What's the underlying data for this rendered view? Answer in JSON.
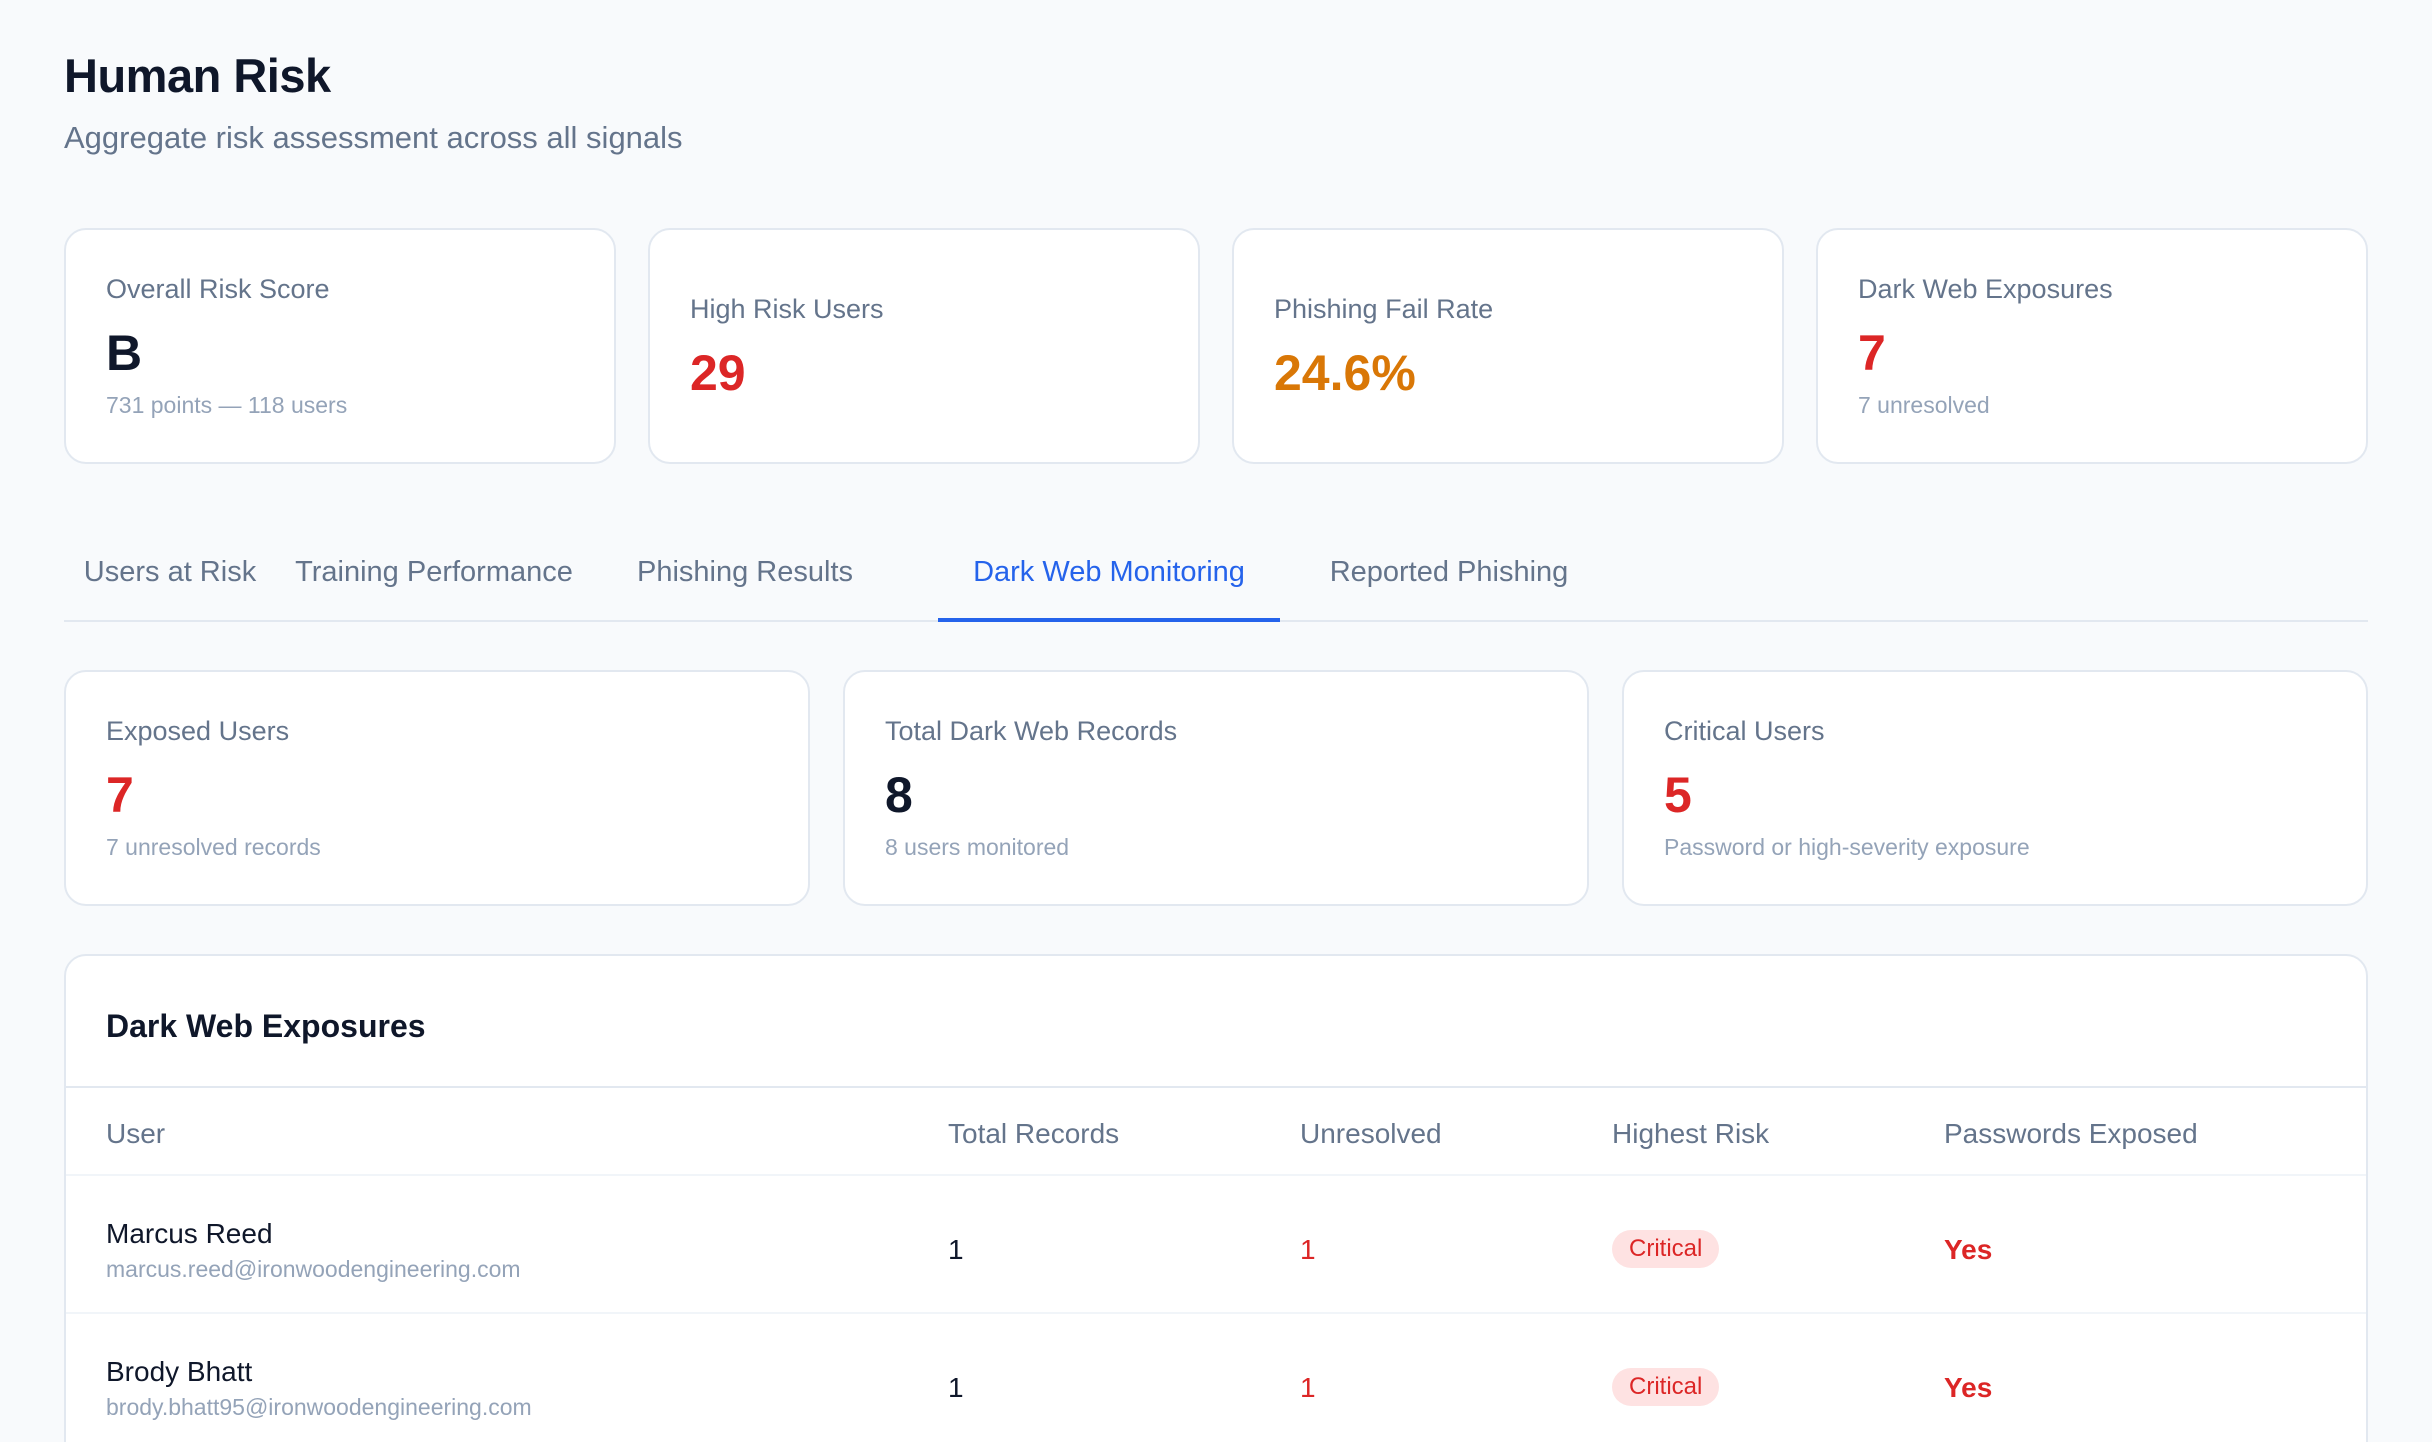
{
  "header": {
    "title": "Human Risk",
    "subtitle": "Aggregate risk assessment across all signals"
  },
  "summary_cards": [
    {
      "label": "Overall Risk Score",
      "value": "B",
      "sub": "731 points — 118 users"
    },
    {
      "label": "High Risk Users",
      "value": "29"
    },
    {
      "label": "Phishing Fail Rate",
      "value": "24.6%"
    },
    {
      "label": "Dark Web Exposures",
      "value": "7",
      "sub": "7 unresolved"
    }
  ],
  "tabs": [
    {
      "label": "Users at Risk"
    },
    {
      "label": "Training Performance"
    },
    {
      "label": "Phishing Results"
    },
    {
      "label": "Dark Web Monitoring",
      "active": true
    },
    {
      "label": "Reported Phishing"
    }
  ],
  "darkweb_stats": [
    {
      "label": "Exposed Users",
      "value": "7",
      "sub": "7 unresolved records"
    },
    {
      "label": "Total Dark Web Records",
      "value": "8",
      "sub": "8 users monitored"
    },
    {
      "label": "Critical Users",
      "value": "5",
      "sub": "Password or high-severity exposure"
    }
  ],
  "exposures_table": {
    "title": "Dark Web Exposures",
    "columns": [
      "User",
      "Total Records",
      "Unresolved",
      "Highest Risk",
      "Passwords Exposed"
    ],
    "rows": [
      {
        "name": "Marcus Reed",
        "email": "marcus.reed@ironwoodengineering.com",
        "total": "1",
        "unresolved": "1",
        "risk": "Critical",
        "passwords": "Yes"
      },
      {
        "name": "Brody Bhatt",
        "email": "brody.bhatt95@ironwoodengineering.com",
        "total": "1",
        "unresolved": "1",
        "risk": "Critical",
        "passwords": "Yes"
      }
    ]
  },
  "colors": {
    "accent": "#2563eb",
    "danger": "#dc2626",
    "warning": "#d97706",
    "critical_badge_bg": "#fee2e2"
  }
}
